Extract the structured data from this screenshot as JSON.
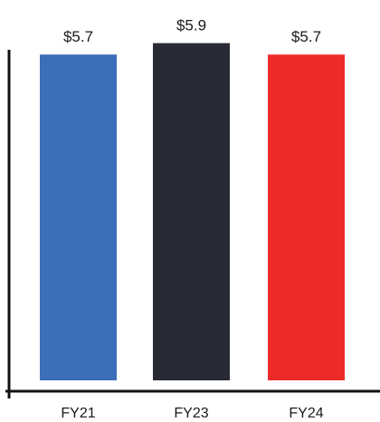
{
  "chart_data": {
    "type": "bar",
    "title": "",
    "xlabel": "",
    "ylabel": "",
    "categories": [
      "FY21",
      "FY23",
      "FY24"
    ],
    "values": [
      5.7,
      5.9,
      5.7
    ],
    "data_labels": [
      "$5.7",
      "$5.9",
      "$5.7"
    ],
    "bar_colors": [
      "#3d6eb8",
      "#282a35",
      "#ee2a2b"
    ],
    "ylim": [
      0,
      6.1
    ],
    "grid": false,
    "legend": "none"
  }
}
